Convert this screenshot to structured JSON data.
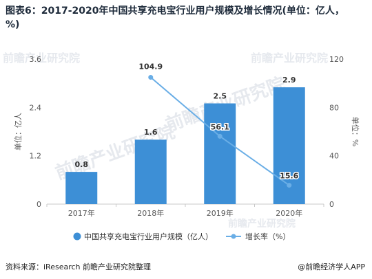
{
  "title": "图表6：2017-2020年中国共享充电宝行业用户规模及增长情况(单位：亿人，%)",
  "footer": {
    "source": "资料来源：iResearch 前瞻产业研究院整理",
    "credit": "@前瞻经济学人APP"
  },
  "watermark": "前瞻产业研究院",
  "colors": {
    "bar": "#3d8fd6",
    "line": "#6aaee6",
    "axis": "#c8c8c8",
    "text": "#555555"
  },
  "chart_data": {
    "type": "bar",
    "categories": [
      "2017年",
      "2018年",
      "2019年",
      "2020年"
    ],
    "series": [
      {
        "name": "中国共享充电宝行业用户规模（亿人）",
        "type": "bar",
        "axis": "left",
        "values": [
          0.8,
          1.6,
          2.5,
          2.9
        ],
        "labels": [
          "0.8",
          "1.6",
          "2.5",
          "2.9"
        ]
      },
      {
        "name": "增长率（%）",
        "type": "line",
        "axis": "right",
        "values": [
          null,
          104.9,
          56.1,
          15.6
        ],
        "labels": [
          "",
          "104.9",
          "56.1",
          "15.6"
        ]
      }
    ],
    "ylabel": "单位：亿人",
    "y2label": "单位：%",
    "ylim": [
      0,
      3.6
    ],
    "y2lim": [
      0,
      120
    ],
    "yticks": [
      "0",
      "1.2",
      "2.4",
      "3.6"
    ],
    "y2ticks": [
      "0",
      "40",
      "80",
      "120"
    ],
    "legend_position": "bottom"
  }
}
